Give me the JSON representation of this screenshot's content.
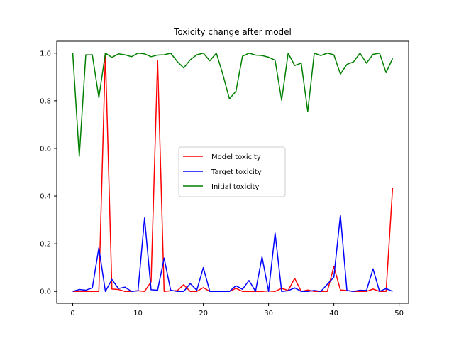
{
  "chart_data": {
    "type": "line",
    "title": "Toxicity change after model",
    "xlabel": "",
    "ylabel": "",
    "xlim": [
      -2.45,
      51.45
    ],
    "ylim": [
      -0.05,
      1.05
    ],
    "xticks": [
      0,
      10,
      20,
      30,
      40,
      50
    ],
    "xtick_labels": [
      "0",
      "10",
      "20",
      "30",
      "40",
      "50"
    ],
    "yticks": [
      0.0,
      0.2,
      0.4,
      0.6,
      0.8,
      1.0
    ],
    "ytick_labels": [
      "0.0",
      "0.2",
      "0.4",
      "0.6",
      "0.8",
      "1.0"
    ],
    "grid": false,
    "legend_position": "center",
    "x": [
      0,
      1,
      2,
      3,
      4,
      5,
      6,
      7,
      8,
      9,
      10,
      11,
      12,
      13,
      14,
      15,
      16,
      17,
      18,
      19,
      20,
      21,
      22,
      23,
      24,
      25,
      26,
      27,
      28,
      29,
      30,
      31,
      32,
      33,
      34,
      35,
      36,
      37,
      38,
      39,
      40,
      41,
      42,
      43,
      44,
      45,
      46,
      47,
      48,
      49
    ],
    "series": [
      {
        "name": "Model toxicity",
        "color": "#ff0000",
        "values": [
          0.0,
          0.0,
          0.0,
          0.0,
          0.0,
          1.0,
          0.01,
          0.008,
          0.0,
          0.0,
          0.003,
          0.0,
          0.04,
          0.97,
          0.0,
          0.003,
          0.003,
          0.028,
          0.0,
          0.0,
          0.016,
          0.0,
          0.0,
          0.0,
          0.0,
          0.013,
          0.0,
          0.0,
          0.0,
          0.0,
          0.002,
          0.0,
          0.013,
          0.004,
          0.055,
          0.0,
          0.006,
          0.0,
          0.0,
          0.0,
          0.105,
          0.006,
          0.004,
          0.0,
          0.0,
          0.0,
          0.01,
          0.0,
          0.0,
          0.435
        ]
      },
      {
        "name": "Target toxicity",
        "color": "#0000ff",
        "values": [
          0.0,
          0.008,
          0.005,
          0.015,
          0.183,
          0.0,
          0.05,
          0.012,
          0.018,
          0.0,
          0.003,
          0.308,
          0.007,
          0.005,
          0.14,
          0.005,
          0.0,
          0.0,
          0.033,
          0.005,
          0.1,
          0.0,
          0.0,
          0.0,
          0.0,
          0.024,
          0.009,
          0.046,
          0.0,
          0.145,
          0.0,
          0.245,
          0.0,
          0.003,
          0.015,
          0.0,
          0.0,
          0.004,
          0.0,
          0.03,
          0.06,
          0.32,
          0.004,
          0.0,
          0.005,
          0.004,
          0.095,
          0.0,
          0.012,
          0.0
        ]
      },
      {
        "name": "Initial toxicity",
        "color": "#008000",
        "values": [
          1.0,
          0.567,
          0.993,
          0.993,
          0.813,
          1.0,
          0.982,
          0.997,
          0.993,
          0.985,
          1.0,
          0.997,
          0.985,
          0.992,
          0.993,
          1.0,
          0.965,
          0.938,
          0.972,
          0.993,
          1.0,
          0.968,
          1.0,
          0.91,
          0.808,
          0.84,
          0.987,
          1.0,
          0.992,
          0.99,
          0.983,
          0.97,
          0.802,
          1.0,
          0.948,
          0.958,
          0.755,
          1.0,
          0.99,
          1.0,
          0.993,
          0.912,
          0.953,
          0.963,
          1.0,
          0.958,
          0.995,
          1.0,
          0.918,
          0.978
        ]
      }
    ]
  }
}
